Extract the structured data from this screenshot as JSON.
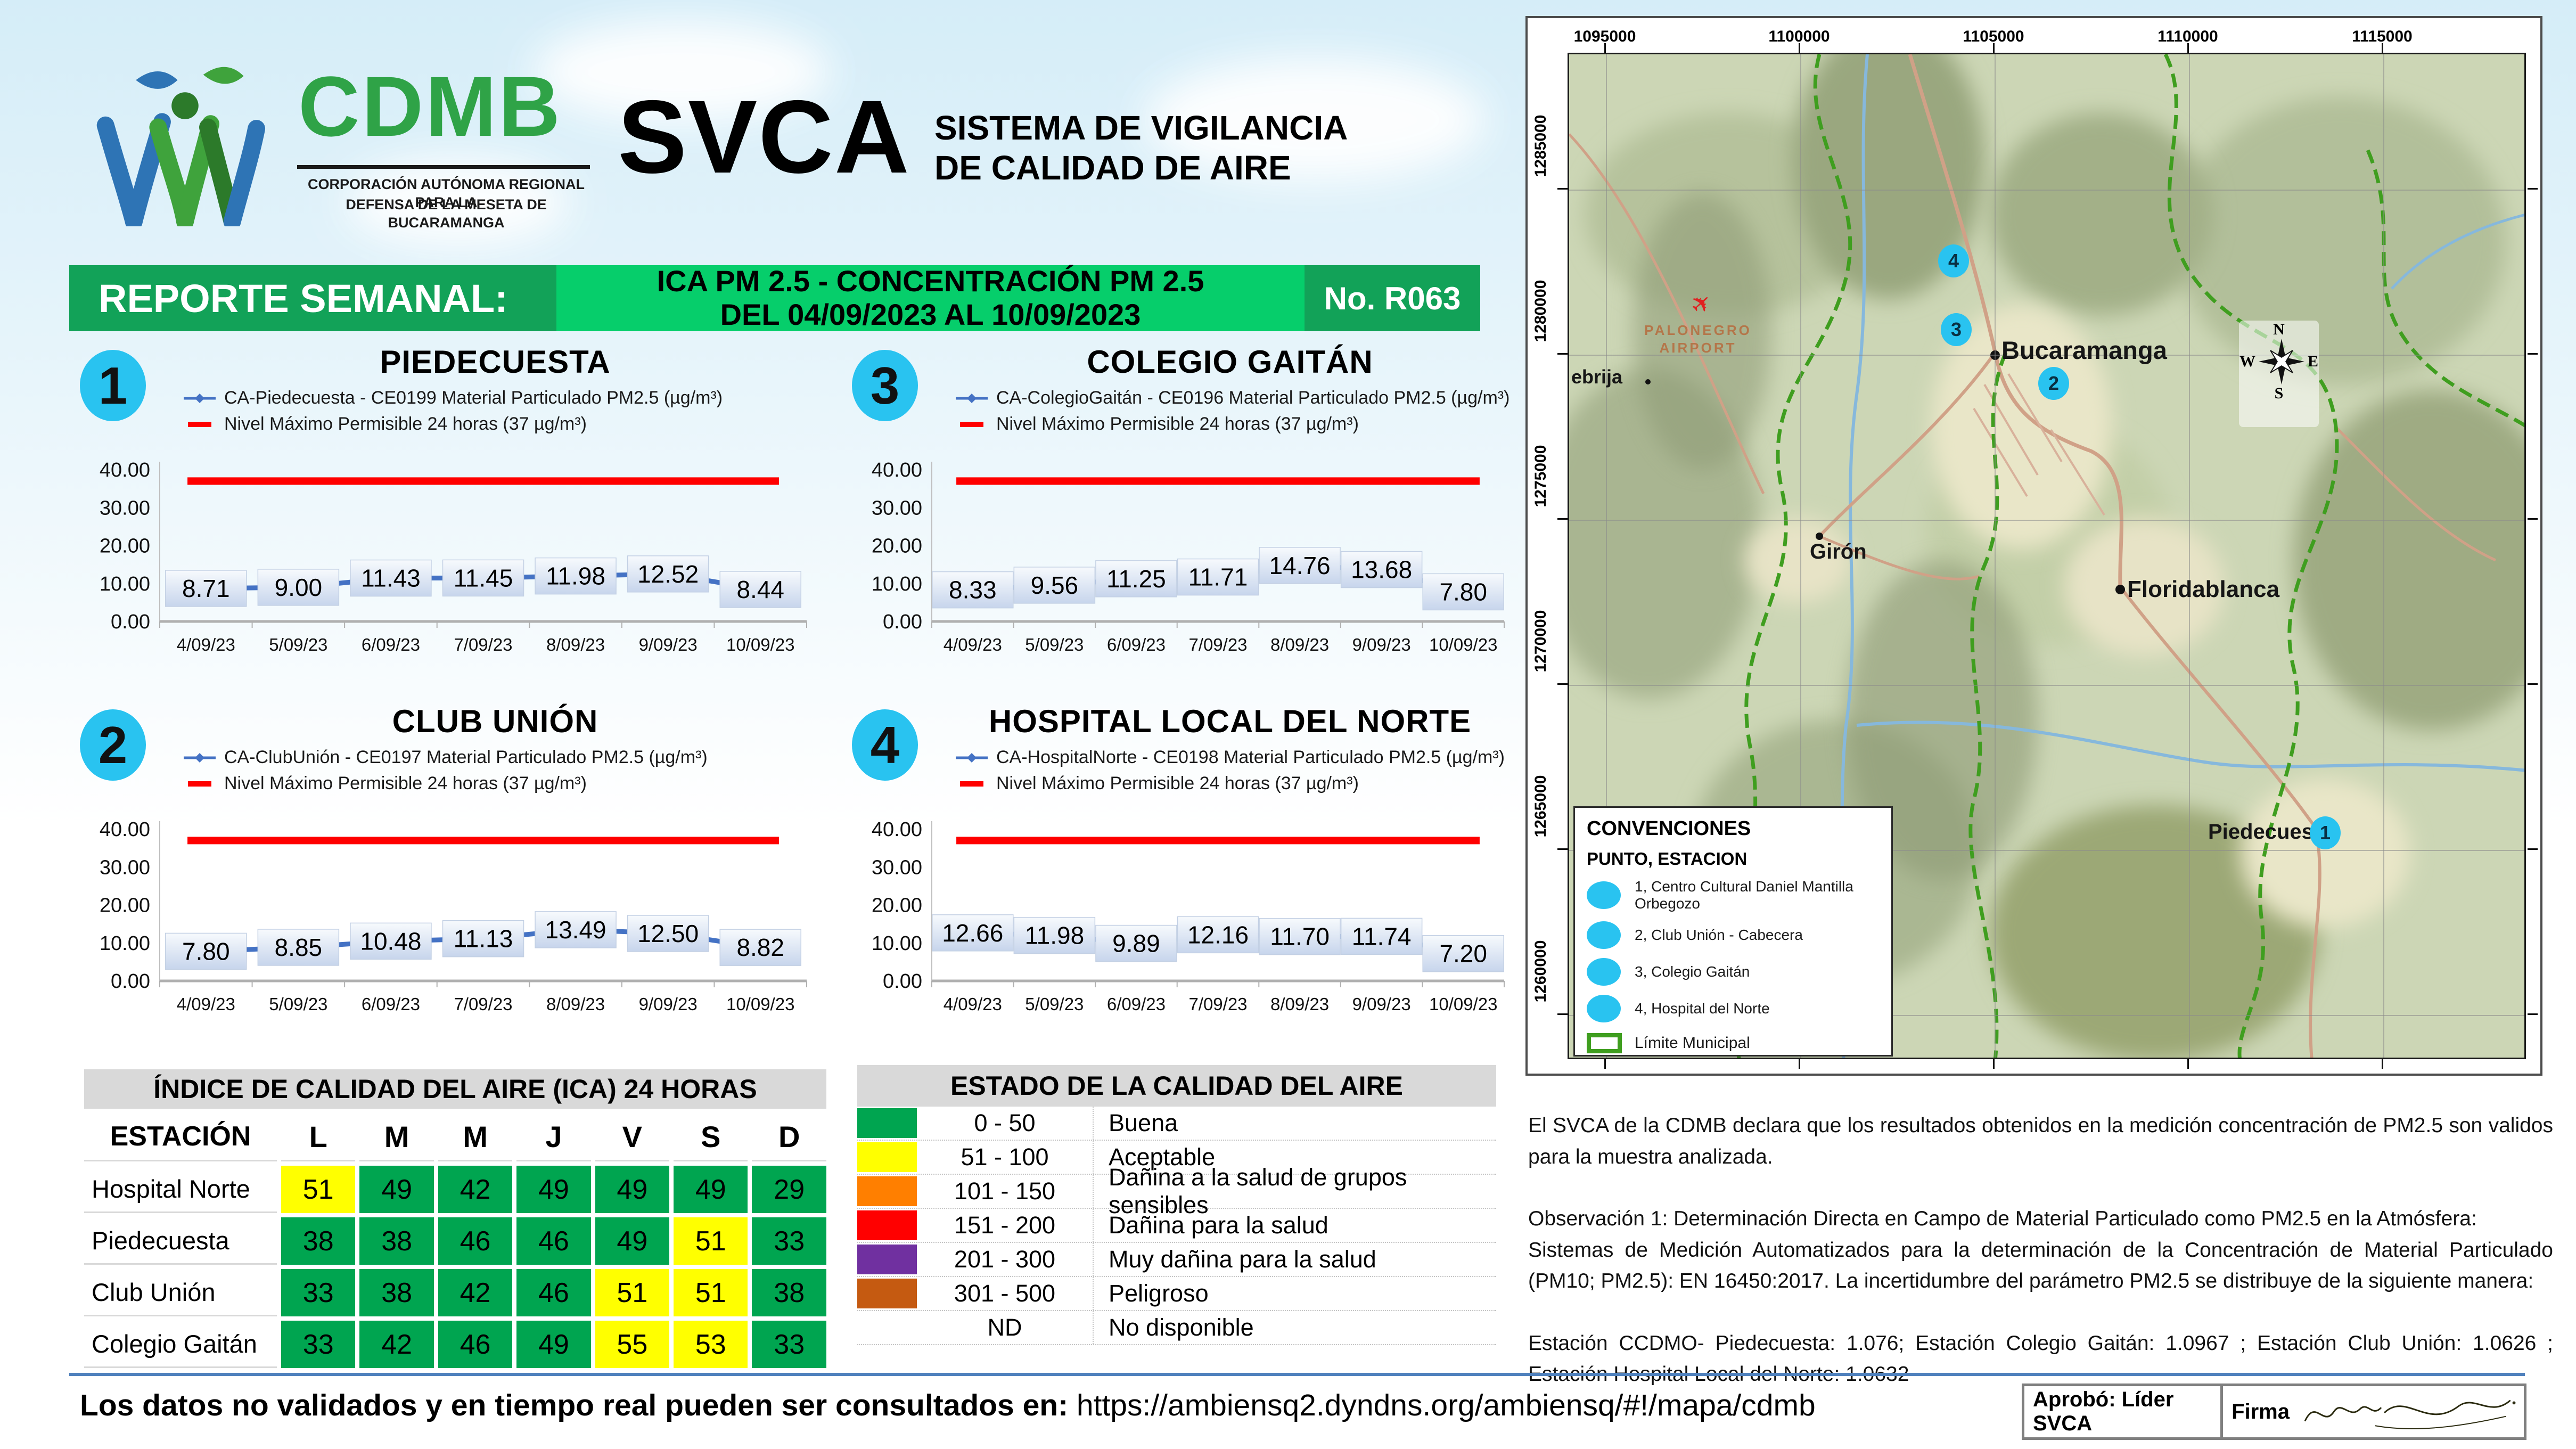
{
  "header": {
    "org_acronym": "CDMB",
    "org_name_line1": "CORPORACIÓN AUTÓNOMA REGIONAL PARA LA",
    "org_name_line2": "DEFENSA DE LA MESETA DE BUCARAMANGA",
    "system_acronym": "SVCA",
    "system_name_line1": "SISTEMA DE VIGILANCIA",
    "system_name_line2": "DE CALIDAD DE AIRE"
  },
  "banner": {
    "report_label": "REPORTE SEMANAL:",
    "subject_line1": "ICA PM 2.5 - CONCENTRACIÓN PM 2.5",
    "subject_line2": "DEL 04/09/2023 AL 10/09/2023",
    "report_number": "No. R063"
  },
  "chart_data": [
    {
      "type": "line",
      "number": "1",
      "title": "PIEDECUESTA",
      "series_label": "CA-Piedecuesta - CE0199 Material Particulado PM2.5 (µg/m³)",
      "limit_label": "Nivel Máximo Permisible 24 horas (37 µg/m³)",
      "x": [
        "4/09/23",
        "5/09/23",
        "6/09/23",
        "7/09/23",
        "8/09/23",
        "9/09/23",
        "10/09/23"
      ],
      "values": [
        8.71,
        9.0,
        11.43,
        11.45,
        11.98,
        12.52,
        8.44
      ],
      "limit": 37,
      "ylim": [
        0,
        40
      ],
      "yticks": [
        40,
        30,
        20,
        10,
        0
      ],
      "legend_position": "top-left",
      "grid": "off"
    },
    {
      "type": "line",
      "number": "3",
      "title": "COLEGIO GAITÁN",
      "series_label": "CA-ColegioGaitán - CE0196 Material Particulado PM2.5 (µg/m³)",
      "limit_label": "Nivel Máximo Permisible 24 horas (37 µg/m³)",
      "x": [
        "4/09/23",
        "5/09/23",
        "6/09/23",
        "7/09/23",
        "8/09/23",
        "9/09/23",
        "10/09/23"
      ],
      "values": [
        8.33,
        9.56,
        11.25,
        11.71,
        14.76,
        13.68,
        7.8
      ],
      "limit": 37,
      "ylim": [
        0,
        40
      ],
      "yticks": [
        40,
        30,
        20,
        10,
        0
      ],
      "legend_position": "top-left",
      "grid": "off"
    },
    {
      "type": "line",
      "number": "2",
      "title": "CLUB UNIÓN",
      "series_label": "CA-ClubUnión - CE0197 Material Particulado PM2.5 (µg/m³)",
      "limit_label": "Nivel Máximo Permisible 24 horas (37 µg/m³)",
      "x": [
        "4/09/23",
        "5/09/23",
        "6/09/23",
        "7/09/23",
        "8/09/23",
        "9/09/23",
        "10/09/23"
      ],
      "values": [
        7.8,
        8.85,
        10.48,
        11.13,
        13.49,
        12.5,
        8.82
      ],
      "limit": 37,
      "ylim": [
        0,
        40
      ],
      "yticks": [
        40,
        30,
        20,
        10,
        0
      ],
      "legend_position": "top-left",
      "grid": "off"
    },
    {
      "type": "line",
      "number": "4",
      "title": "HOSPITAL LOCAL DEL NORTE",
      "series_label": "CA-HospitalNorte - CE0198 Material Particulado PM2.5 (µg/m³)",
      "limit_label": "Nivel Máximo Permisible 24 horas (37 µg/m³)",
      "x": [
        "4/09/23",
        "5/09/23",
        "6/09/23",
        "7/09/23",
        "8/09/23",
        "9/09/23",
        "10/09/23"
      ],
      "values": [
        12.66,
        11.98,
        9.89,
        12.16,
        11.7,
        11.74,
        7.2
      ],
      "limit": 37,
      "ylim": [
        0,
        40
      ],
      "yticks": [
        40,
        30,
        20,
        10,
        0
      ],
      "legend_position": "top-left",
      "grid": "off"
    }
  ],
  "ica_table": {
    "title": "ÍNDICE DE CALIDAD DEL AIRE (ICA) 24 HORAS",
    "station_header": "ESTACIÓN",
    "day_headers": [
      "L",
      "M",
      "M",
      "J",
      "V",
      "S",
      "D"
    ],
    "rows": [
      {
        "station": "Hospital Norte",
        "values": [
          51,
          49,
          42,
          49,
          49,
          49,
          29
        ],
        "colors": [
          "yellow",
          "green",
          "green",
          "green",
          "green",
          "green",
          "green"
        ]
      },
      {
        "station": "Piedecuesta",
        "values": [
          38,
          38,
          46,
          46,
          49,
          51,
          33
        ],
        "colors": [
          "green",
          "green",
          "green",
          "green",
          "green",
          "yellow",
          "green"
        ]
      },
      {
        "station": "Club Unión",
        "values": [
          33,
          38,
          42,
          46,
          51,
          51,
          38
        ],
        "colors": [
          "green",
          "green",
          "green",
          "green",
          "yellow",
          "yellow",
          "green"
        ]
      },
      {
        "station": "Colegio Gaitán",
        "values": [
          33,
          42,
          46,
          49,
          55,
          53,
          33
        ],
        "colors": [
          "green",
          "green",
          "green",
          "green",
          "yellow",
          "yellow",
          "green"
        ]
      }
    ]
  },
  "estado_table": {
    "title": "ESTADO DE LA CALIDAD DEL AIRE",
    "rows": [
      {
        "range": "0 - 50",
        "label": "Buena",
        "color": "#00A550"
      },
      {
        "range": "51 - 100",
        "label": "Aceptable",
        "color": "#FFFF00"
      },
      {
        "range": "101 - 150",
        "label": "Dañina a la salud de grupos sensibles",
        "color": "#FF7F00"
      },
      {
        "range": "151 - 200",
        "label": "Dañina para la salud",
        "color": "#FF0000"
      },
      {
        "range": "201 - 300",
        "label": "Muy dañina para la salud",
        "color": "#7030A0"
      },
      {
        "range": "301 - 500",
        "label": "Peligroso",
        "color": "#C55A11"
      },
      {
        "range": "ND",
        "label": "No disponible",
        "color": ""
      }
    ]
  },
  "map": {
    "top_labels": [
      "1095000",
      "1100000",
      "1105000",
      "1110000",
      "1115000"
    ],
    "left_labels": [
      "1285000",
      "1280000",
      "1275000",
      "1270000",
      "1265000",
      "1260000"
    ],
    "cities": [
      {
        "name": "Bucaramanga"
      },
      {
        "name": "Floridablanca"
      },
      {
        "name": "Girón"
      },
      {
        "name": "Piedecuesta"
      }
    ],
    "edge_label": "ebrija",
    "airport_line1": "PALONEGRO",
    "airport_line2": "AIRPORT",
    "compass": {
      "n": "N",
      "e": "E",
      "s": "S",
      "w": "W"
    },
    "markers": [
      {
        "id": "4"
      },
      {
        "id": "3"
      },
      {
        "id": "2"
      },
      {
        "id": "1"
      }
    ],
    "legend": {
      "title": "CONVENCIONES",
      "subtitle": "PUNTO, ESTACION",
      "items": [
        "1, Centro Cultural Daniel Mantilla Orbegozo",
        "2, Club Unión - Cabecera",
        "3, Colegio Gaitán",
        "4, Hospital del Norte"
      ],
      "boundary_label": "Límite Municipal"
    }
  },
  "notes": {
    "p1": "El SVCA  de la CDMB declara que los resultados obtenidos en la medición concentración de PM2.5 son validos para la muestra  analizada.",
    "p2": "Observación 1: Determinación Directa en Campo de Material Particulado como PM2.5 en la Atmósfera:\nSistemas de Medición Automatizados para la  determinación de la Concentración de Material Particulado (PM10; PM2.5): EN 16450:2017. La incertidumbre del parámetro PM2.5 se distribuye de la siguiente manera:",
    "p3": "Estación CCDMO- Piedecuesta: 1.076; Estación Colegio Gaitán: 1.0967 ; Estación Club Unión: 1.0626 ; Estación Hospital Local del Norte: 1.0632"
  },
  "footer": {
    "consult_label": "Los datos no validados y en tiempo real pueden ser consultados en:",
    "url": "https://ambiensq2.dyndns.org/ambiensq/#!/mapa/cdmb",
    "approved_label": "Aprobó: Líder SVCA",
    "signature_label": "Firma"
  },
  "colors": {
    "banner_dark_green": "#12A258",
    "banner_bright_green": "#06CE6B",
    "badge_cyan": "#29C3F0",
    "series_blue": "#4472C4",
    "limit_red": "#FF0000",
    "ica_green": "#00A550",
    "ica_yellow": "#FFFF00",
    "divider_blue": "#4F81BD",
    "boundary_green": "#3f9e1f"
  }
}
